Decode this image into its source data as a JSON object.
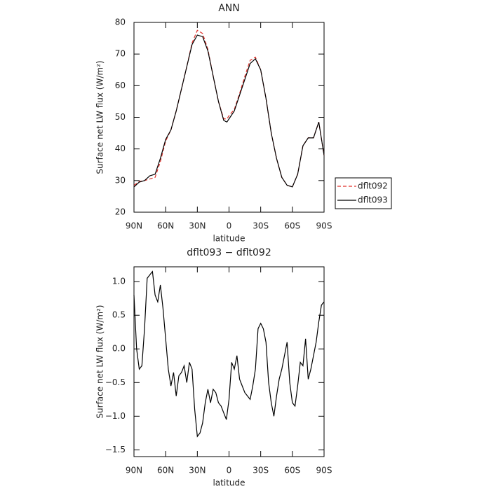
{
  "chart_data": [
    {
      "type": "line",
      "title": "ANN",
      "xlabel": "latitude",
      "ylabel": "Surface net LW flux (W/m²)",
      "x": [
        90,
        85,
        80,
        75,
        70,
        65,
        60,
        55,
        50,
        45,
        40,
        35,
        30,
        25,
        20,
        15,
        10,
        5,
        2,
        0,
        -5,
        -10,
        -15,
        -20,
        -25,
        -30,
        -35,
        -40,
        -45,
        -50,
        -55,
        -60,
        -65,
        -70,
        -75,
        -80,
        -85,
        -90
      ],
      "series": [
        {
          "name": "dflt092",
          "color": "#e0302a",
          "dash": true,
          "values": [
            28.5,
            29.7,
            30,
            30.5,
            31,
            36,
            42.5,
            46,
            52,
            59,
            66,
            73.5,
            77.5,
            76.5,
            71.5,
            63,
            55,
            49.5,
            49.5,
            50.5,
            52.5,
            57.5,
            63,
            68,
            69,
            65,
            56,
            45,
            37,
            31,
            28.5,
            28,
            32,
            41,
            43.5,
            43.5,
            48.5,
            38
          ]
        },
        {
          "name": "dflt093",
          "color": "#000000",
          "dash": false,
          "values": [
            28,
            29.5,
            30,
            31.5,
            32,
            37,
            43,
            46,
            52,
            59,
            66,
            73,
            76,
            75.5,
            71,
            63,
            55,
            49,
            48.5,
            49.5,
            52,
            57,
            62,
            67,
            68.5,
            65,
            56,
            45,
            37,
            31,
            28.5,
            28,
            32,
            41,
            43.5,
            43.5,
            48.5,
            38
          ]
        }
      ],
      "xlim": [
        90,
        -90
      ],
      "xticks": [
        {
          "value": 90,
          "label": "90N"
        },
        {
          "value": 60,
          "label": "60N"
        },
        {
          "value": 30,
          "label": "30N"
        },
        0,
        {
          "value": -30,
          "label": "30S"
        },
        {
          "value": -60,
          "label": "60S"
        },
        {
          "value": -90,
          "label": "90S"
        }
      ],
      "ylim": [
        20,
        80
      ],
      "yticks": [
        20,
        30,
        40,
        50,
        60,
        70,
        80
      ],
      "legend": "right"
    },
    {
      "type": "line",
      "title": "dflt093 − dflt092",
      "xlabel": "latitude",
      "ylabel": "Surface net LW flux (W/m²)",
      "x": [
        90,
        87.5,
        85,
        82.5,
        80,
        77.5,
        75,
        72.5,
        70,
        67.5,
        65,
        62.5,
        60,
        57.5,
        55,
        52.5,
        50,
        47.5,
        45,
        42.5,
        40,
        37.5,
        35,
        32.5,
        30,
        27.5,
        25,
        22.5,
        20,
        17.5,
        15,
        12.5,
        10,
        7.5,
        5,
        2.5,
        0,
        -2.5,
        -5,
        -7.5,
        -10,
        -12.5,
        -15,
        -17.5,
        -20,
        -22.5,
        -25,
        -27.5,
        -30,
        -32.5,
        -35,
        -37.5,
        -40,
        -42.5,
        -45,
        -47.5,
        -50,
        -52.5,
        -55,
        -57.5,
        -60,
        -62.5,
        -65,
        -67.5,
        -70,
        -72.5,
        -75,
        -77.5,
        -80,
        -82.5,
        -85,
        -87.5,
        -90
      ],
      "series": [
        {
          "name": "dflt093 − dflt092",
          "color": "#000000",
          "dash": false,
          "values": [
            0.8,
            0.0,
            -0.3,
            -0.25,
            0.3,
            1.05,
            1.1,
            1.15,
            0.8,
            0.7,
            0.95,
            0.6,
            0.15,
            -0.3,
            -0.55,
            -0.35,
            -0.7,
            -0.4,
            -0.35,
            -0.25,
            -0.5,
            -0.2,
            -0.3,
            -0.9,
            -1.3,
            -1.25,
            -1.1,
            -0.8,
            -0.6,
            -0.8,
            -0.6,
            -0.65,
            -0.8,
            -0.85,
            -0.95,
            -1.05,
            -0.75,
            -0.2,
            -0.3,
            -0.1,
            -0.45,
            -0.55,
            -0.65,
            -0.7,
            -0.75,
            -0.55,
            -0.3,
            0.3,
            0.38,
            0.3,
            0.1,
            -0.5,
            -0.8,
            -1.0,
            -0.7,
            -0.45,
            -0.3,
            -0.1,
            0.1,
            -0.5,
            -0.8,
            -0.85,
            -0.55,
            -0.2,
            -0.25,
            0.15,
            -0.45,
            -0.3,
            -0.1,
            0.1,
            0.4,
            0.65,
            0.7
          ]
        }
      ],
      "xlim": [
        90,
        -90
      ],
      "xticks": [
        {
          "value": 90,
          "label": "90N"
        },
        {
          "value": 60,
          "label": "60N"
        },
        {
          "value": 30,
          "label": "30N"
        },
        0,
        {
          "value": -30,
          "label": "30S"
        },
        {
          "value": -60,
          "label": "60S"
        },
        {
          "value": -90,
          "label": "90S"
        }
      ],
      "ylim": [
        -1.6,
        1.22
      ],
      "yticks": [
        {
          "value": -1.5,
          "label": "−1.5"
        },
        {
          "value": -1,
          "label": "−1.0"
        },
        {
          "value": -0.5,
          "label": "−0.5"
        },
        {
          "value": 0,
          "label": "0.0"
        },
        0.5,
        {
          "value": 1,
          "label": "1.0"
        }
      ]
    }
  ]
}
